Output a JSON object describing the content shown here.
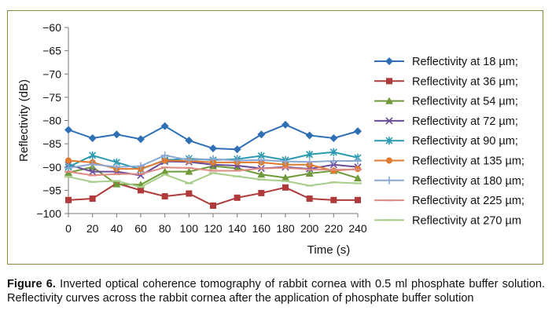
{
  "chart_data": {
    "type": "line",
    "title": "",
    "xlabel": "Time (s)",
    "ylabel": "Reflectivity (dB)",
    "x": [
      0,
      20,
      40,
      60,
      80,
      100,
      120,
      140,
      160,
      180,
      200,
      220,
      240
    ],
    "xlim": [
      0,
      240
    ],
    "ylim": [
      -100,
      -60
    ],
    "yticks": [
      -60,
      -65,
      -70,
      -75,
      -80,
      -85,
      -90,
      -95,
      -100
    ],
    "grid": false,
    "legend_position": "right",
    "series": [
      {
        "name": "Reflectivity at 18 µm;",
        "color": "#2e6fb5",
        "marker": "diamond",
        "values": [
          -82.0,
          -83.8,
          -83.0,
          -84.0,
          -81.2,
          -84.3,
          -86.0,
          -86.2,
          -83.0,
          -80.9,
          -83.2,
          -83.8,
          -82.3
        ]
      },
      {
        "name": "Reflectivity at 36 µm;",
        "color": "#b03a3a",
        "marker": "square",
        "values": [
          -97.1,
          -96.8,
          -93.5,
          -95.0,
          -96.3,
          -95.7,
          -98.3,
          -96.6,
          -95.6,
          -94.4,
          -96.8,
          -97.1,
          -97.1
        ]
      },
      {
        "name": "Reflectivity at 54 µm;",
        "color": "#6f9a3a",
        "marker": "triangle",
        "values": [
          -91.2,
          -90.0,
          -93.7,
          -93.8,
          -91.0,
          -91.0,
          -89.8,
          -90.3,
          -91.6,
          -92.3,
          -91.4,
          -90.8,
          -92.4
        ]
      },
      {
        "name": "Reflectivity at 72 µm;",
        "color": "#6a4a9a",
        "marker": "x",
        "values": [
          -89.5,
          -91.0,
          -91.0,
          -91.8,
          -88.8,
          -88.9,
          -89.5,
          -89.7,
          -90.3,
          -90.0,
          -90.4,
          -89.5,
          -90.0
        ]
      },
      {
        "name": "Reflectivity at 90 µm;",
        "color": "#2a9ab0",
        "marker": "star",
        "values": [
          -90.0,
          -87.5,
          -89.0,
          -90.5,
          -88.5,
          -88.2,
          -88.5,
          -88.3,
          -87.6,
          -88.5,
          -87.3,
          -86.8,
          -88.0
        ]
      },
      {
        "name": "Reflectivity at 135 µm;",
        "color": "#e07a2e",
        "marker": "circle",
        "values": [
          -88.6,
          -89.0,
          -90.4,
          -90.4,
          -88.6,
          -88.7,
          -89.0,
          -89.0,
          -89.0,
          -89.5,
          -89.5,
          -90.8,
          -90.4
        ]
      },
      {
        "name": "Reflectivity at 180 µm;",
        "color": "#8aa8d2",
        "marker": "plus",
        "values": [
          -90.2,
          -89.4,
          -90.0,
          -89.8,
          -87.5,
          -88.5,
          -88.3,
          -88.6,
          -88.5,
          -88.8,
          -88.9,
          -88.7,
          -88.7
        ]
      },
      {
        "name": "Reflectivity at 225 µm;",
        "color": "#e08a84",
        "marker": "dash",
        "values": [
          -91.0,
          -91.8,
          -91.5,
          -91.5,
          -90.1,
          -90.2,
          -90.8,
          -90.8,
          -90.3,
          -90.2,
          -90.5,
          -90.6,
          -90.5
        ]
      },
      {
        "name": "Reflectivity at 270 µm",
        "color": "#a8cc8a",
        "marker": "dash",
        "values": [
          -92.1,
          -93.2,
          -93.0,
          -94.3,
          -91.6,
          -93.5,
          -91.3,
          -92.0,
          -92.7,
          -93.0,
          -94.0,
          -93.3,
          -93.5
        ]
      }
    ]
  },
  "caption": {
    "label": "Figure 6.",
    "text": " Inverted optical coherence tomography of rabbit cornea with 0.5 ml phosphate buffer solution. Reflectivity curves across the rabbit cornea after the application of phosphate buffer solution"
  }
}
